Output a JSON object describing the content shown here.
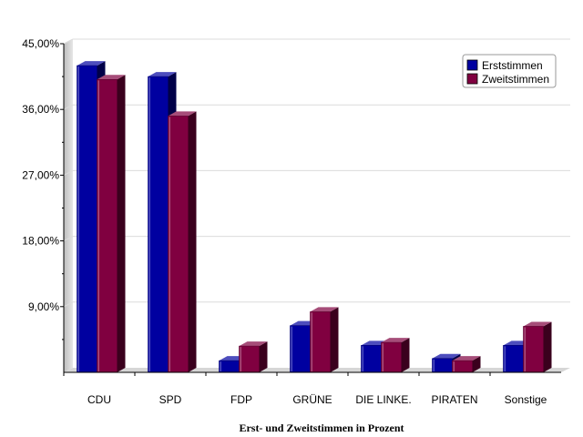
{
  "chart_data": {
    "type": "bar",
    "title": "",
    "xlabel": "Erst- und Zweitstimmen in Prozent",
    "ylabel": "",
    "ylim": [
      0,
      45
    ],
    "yticks": [
      9,
      18,
      27,
      36,
      45
    ],
    "ytick_labels": [
      "9,00%",
      "18,00%",
      "27,00%",
      "36,00%",
      "45,00%"
    ],
    "grid": true,
    "legend_position": "top-right",
    "categories": [
      "CDU",
      "SPD",
      "FDP",
      "GRÜNE",
      "DIE LINKE.",
      "PIRATEN",
      "Sonstige"
    ],
    "series": [
      {
        "name": "Erststimmen",
        "color": "#0000a0",
        "values": [
          42.0,
          40.5,
          1.6,
          6.4,
          3.7,
          1.9,
          3.7
        ]
      },
      {
        "name": "Zweitstimmen",
        "color": "#800040",
        "values": [
          40.1,
          35.1,
          3.6,
          8.3,
          4.1,
          1.6,
          6.3
        ]
      }
    ]
  }
}
